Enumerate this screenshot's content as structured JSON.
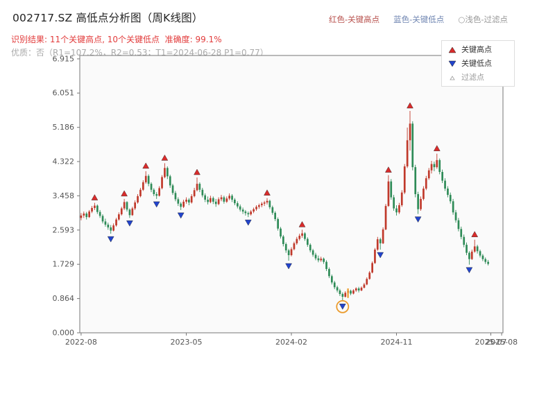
{
  "header": {
    "title": "002717.SZ 高低点分析图（周K线图）",
    "legend_high": "红色-关键高点",
    "legend_low": "蓝色-关键低点",
    "legend_filter": "○浅色-过滤点",
    "result_line": "识别结果: 11个关键高点, 10个关键低点  准确度: 99.1%",
    "quality_line": "优质：否（R1=107.2%，R2=0.53；T1=2024-06-28 P1=0.77）"
  },
  "legend_box": {
    "items": [
      {
        "label": "关键高点",
        "marker": "red-up-triangle"
      },
      {
        "label": "关键低点",
        "marker": "blue-down-triangle"
      },
      {
        "label": "过滤点",
        "marker": "hollow-triangle"
      }
    ]
  },
  "chart_data": {
    "type": "candlestick",
    "symbol": "002717.SZ",
    "period": "weekly",
    "title": "002717.SZ 高低点分析图（周K线图）",
    "ylim": [
      0,
      7.0
    ],
    "weeks_span": 157,
    "y_ticks": [
      "0.000",
      "0.864",
      "1.729",
      "2.593",
      "3.458",
      "4.322",
      "5.186",
      "6.051",
      "6.915"
    ],
    "x_ticks": [
      {
        "label": "2022-08",
        "week": 0
      },
      {
        "label": "2023-05",
        "week": 39
      },
      {
        "label": "2024-02",
        "week": 78
      },
      {
        "label": "2024-11",
        "week": 117
      },
      {
        "label": "2025-07",
        "week": 152
      },
      {
        "label": "2025-08",
        "week": 156
      }
    ],
    "key_high_weeks": [
      5,
      16,
      24,
      31,
      43,
      69,
      82,
      114,
      122,
      132,
      146
    ],
    "key_low_weeks": [
      11,
      18,
      28,
      37,
      62,
      77,
      97,
      111,
      125,
      144
    ],
    "filtered_circle_week": 97,
    "filtered_tick": {
      "week": 99,
      "v_top": 1.12,
      "v_bot": 0.88
    },
    "colors": {
      "up": "#c0392b",
      "down": "#2e8b57",
      "key_high": "#d92b2b",
      "key_low": "#2244cc",
      "filter": "#9a9a9a",
      "circle": "#eb9c2d",
      "frame": "#777777"
    },
    "ohlc": [
      [
        2.9,
        3.02,
        2.84,
        2.96
      ],
      [
        2.96,
        3.06,
        2.9,
        3.01
      ],
      [
        3.01,
        3.05,
        2.86,
        2.92
      ],
      [
        2.92,
        3.1,
        2.9,
        3.06
      ],
      [
        3.06,
        3.2,
        3.02,
        3.15
      ],
      [
        3.15,
        3.28,
        3.1,
        3.21
      ],
      [
        3.21,
        3.24,
        3.0,
        3.05
      ],
      [
        3.05,
        3.1,
        2.9,
        2.95
      ],
      [
        2.95,
        2.99,
        2.76,
        2.81
      ],
      [
        2.81,
        2.88,
        2.68,
        2.73
      ],
      [
        2.73,
        2.78,
        2.6,
        2.66
      ],
      [
        2.66,
        2.72,
        2.5,
        2.58
      ],
      [
        2.58,
        2.76,
        2.56,
        2.71
      ],
      [
        2.71,
        2.9,
        2.68,
        2.86
      ],
      [
        2.86,
        3.04,
        2.83,
        2.99
      ],
      [
        2.99,
        3.18,
        2.96,
        3.14
      ],
      [
        3.14,
        3.38,
        3.1,
        3.3
      ],
      [
        3.3,
        3.32,
        3.06,
        3.11
      ],
      [
        3.11,
        3.14,
        2.9,
        2.97
      ],
      [
        2.97,
        3.18,
        2.95,
        3.14
      ],
      [
        3.14,
        3.34,
        3.1,
        3.29
      ],
      [
        3.29,
        3.5,
        3.26,
        3.45
      ],
      [
        3.45,
        3.66,
        3.42,
        3.61
      ],
      [
        3.61,
        3.85,
        3.58,
        3.8
      ],
      [
        3.8,
        4.08,
        3.76,
        3.96
      ],
      [
        3.96,
        4.0,
        3.7,
        3.76
      ],
      [
        3.76,
        3.8,
        3.55,
        3.61
      ],
      [
        3.61,
        3.65,
        3.45,
        3.5
      ],
      [
        3.5,
        3.55,
        3.38,
        3.46
      ],
      [
        3.46,
        3.7,
        3.44,
        3.65
      ],
      [
        3.65,
        3.98,
        3.62,
        3.93
      ],
      [
        3.93,
        4.28,
        3.9,
        4.16
      ],
      [
        4.16,
        4.2,
        3.88,
        3.95
      ],
      [
        3.95,
        3.99,
        3.66,
        3.72
      ],
      [
        3.72,
        3.76,
        3.48,
        3.53
      ],
      [
        3.53,
        3.58,
        3.32,
        3.37
      ],
      [
        3.37,
        3.42,
        3.2,
        3.26
      ],
      [
        3.26,
        3.3,
        3.1,
        3.18
      ],
      [
        3.18,
        3.36,
        3.15,
        3.31
      ],
      [
        3.31,
        3.42,
        3.26,
        3.36
      ],
      [
        3.36,
        3.4,
        3.22,
        3.29
      ],
      [
        3.29,
        3.5,
        3.26,
        3.45
      ],
      [
        3.45,
        3.66,
        3.42,
        3.6
      ],
      [
        3.6,
        3.92,
        3.57,
        3.76
      ],
      [
        3.76,
        3.8,
        3.55,
        3.61
      ],
      [
        3.61,
        3.66,
        3.42,
        3.47
      ],
      [
        3.47,
        3.52,
        3.3,
        3.36
      ],
      [
        3.36,
        3.44,
        3.24,
        3.3
      ],
      [
        3.3,
        3.46,
        3.27,
        3.4
      ],
      [
        3.4,
        3.44,
        3.25,
        3.31
      ],
      [
        3.31,
        3.38,
        3.18,
        3.25
      ],
      [
        3.25,
        3.42,
        3.22,
        3.37
      ],
      [
        3.37,
        3.48,
        3.32,
        3.42
      ],
      [
        3.42,
        3.46,
        3.26,
        3.31
      ],
      [
        3.31,
        3.44,
        3.28,
        3.39
      ],
      [
        3.39,
        3.52,
        3.35,
        3.46
      ],
      [
        3.46,
        3.5,
        3.3,
        3.36
      ],
      [
        3.36,
        3.4,
        3.22,
        3.27
      ],
      [
        3.27,
        3.32,
        3.14,
        3.19
      ],
      [
        3.19,
        3.24,
        3.06,
        3.11
      ],
      [
        3.11,
        3.16,
        3.0,
        3.06
      ],
      [
        3.06,
        3.1,
        2.96,
        3.02
      ],
      [
        3.02,
        3.06,
        2.92,
        2.99
      ],
      [
        2.99,
        3.1,
        2.96,
        3.06
      ],
      [
        3.06,
        3.16,
        3.02,
        3.12
      ],
      [
        3.12,
        3.22,
        3.08,
        3.18
      ],
      [
        3.18,
        3.26,
        3.13,
        3.22
      ],
      [
        3.22,
        3.3,
        3.17,
        3.26
      ],
      [
        3.26,
        3.33,
        3.2,
        3.29
      ],
      [
        3.29,
        3.4,
        3.24,
        3.33
      ],
      [
        3.33,
        3.36,
        3.12,
        3.17
      ],
      [
        3.17,
        3.21,
        2.98,
        3.03
      ],
      [
        3.03,
        3.07,
        2.82,
        2.87
      ],
      [
        2.87,
        2.91,
        2.58,
        2.63
      ],
      [
        2.63,
        2.67,
        2.38,
        2.43
      ],
      [
        2.43,
        2.47,
        2.18,
        2.24
      ],
      [
        2.24,
        2.28,
        2.02,
        2.08
      ],
      [
        2.08,
        2.12,
        1.82,
        1.96
      ],
      [
        1.96,
        2.16,
        1.93,
        2.11
      ],
      [
        2.11,
        2.3,
        2.08,
        2.26
      ],
      [
        2.26,
        2.42,
        2.22,
        2.37
      ],
      [
        2.37,
        2.5,
        2.33,
        2.45
      ],
      [
        2.45,
        2.6,
        2.4,
        2.51
      ],
      [
        2.51,
        2.54,
        2.32,
        2.37
      ],
      [
        2.37,
        2.41,
        2.17,
        2.22
      ],
      [
        2.22,
        2.26,
        2.03,
        2.08
      ],
      [
        2.08,
        2.12,
        1.92,
        1.97
      ],
      [
        1.97,
        2.02,
        1.83,
        1.88
      ],
      [
        1.88,
        1.95,
        1.78,
        1.83
      ],
      [
        1.83,
        1.92,
        1.79,
        1.87
      ],
      [
        1.87,
        1.9,
        1.74,
        1.79
      ],
      [
        1.79,
        1.83,
        1.56,
        1.61
      ],
      [
        1.61,
        1.65,
        1.38,
        1.43
      ],
      [
        1.43,
        1.47,
        1.22,
        1.27
      ],
      [
        1.27,
        1.31,
        1.1,
        1.15
      ],
      [
        1.15,
        1.19,
        1.02,
        1.07
      ],
      [
        1.07,
        1.11,
        0.93,
        0.98
      ],
      [
        0.98,
        1.02,
        0.8,
        0.91
      ],
      [
        0.91,
        1.05,
        0.89,
        1.01
      ],
      [
        1.01,
        1.1,
        0.96,
        1.06
      ],
      [
        1.06,
        1.09,
        0.95,
        0.99
      ],
      [
        0.99,
        1.1,
        0.97,
        1.07
      ],
      [
        1.07,
        1.15,
        1.03,
        1.12
      ],
      [
        1.12,
        1.16,
        1.02,
        1.07
      ],
      [
        1.07,
        1.17,
        1.05,
        1.14
      ],
      [
        1.14,
        1.26,
        1.12,
        1.22
      ],
      [
        1.22,
        1.4,
        1.2,
        1.36
      ],
      [
        1.36,
        1.56,
        1.34,
        1.52
      ],
      [
        1.52,
        1.8,
        1.5,
        1.76
      ],
      [
        1.76,
        2.14,
        1.74,
        2.1
      ],
      [
        2.1,
        2.42,
        2.07,
        2.36
      ],
      [
        2.36,
        2.4,
        2.1,
        2.26
      ],
      [
        2.26,
        2.66,
        2.24,
        2.61
      ],
      [
        2.61,
        3.25,
        2.59,
        3.2
      ],
      [
        3.2,
        3.98,
        3.18,
        3.82
      ],
      [
        3.82,
        3.88,
        3.36,
        3.42
      ],
      [
        3.42,
        3.48,
        3.08,
        3.14
      ],
      [
        3.14,
        3.22,
        2.96,
        3.04
      ],
      [
        3.04,
        3.28,
        3.0,
        3.22
      ],
      [
        3.22,
        3.6,
        3.18,
        3.54
      ],
      [
        3.54,
        4.26,
        3.5,
        4.2
      ],
      [
        4.2,
        5.18,
        4.16,
        4.86
      ],
      [
        4.86,
        5.6,
        4.6,
        5.28
      ],
      [
        5.28,
        5.34,
        4.1,
        4.18
      ],
      [
        4.18,
        4.24,
        3.42,
        3.5
      ],
      [
        3.5,
        3.56,
        3.0,
        3.12
      ],
      [
        3.12,
        3.44,
        3.08,
        3.38
      ],
      [
        3.38,
        3.7,
        3.34,
        3.64
      ],
      [
        3.64,
        3.96,
        3.6,
        3.9
      ],
      [
        3.9,
        4.16,
        3.86,
        4.1
      ],
      [
        4.1,
        4.34,
        4.02,
        4.26
      ],
      [
        4.26,
        4.32,
        4.08,
        4.18
      ],
      [
        4.18,
        4.52,
        4.14,
        4.36
      ],
      [
        4.36,
        4.4,
        4.0,
        4.06
      ],
      [
        4.06,
        4.12,
        3.78,
        3.84
      ],
      [
        3.84,
        3.9,
        3.58,
        3.64
      ],
      [
        3.64,
        3.7,
        3.42,
        3.48
      ],
      [
        3.48,
        3.54,
        3.26,
        3.32
      ],
      [
        3.32,
        3.38,
        2.98,
        3.04
      ],
      [
        3.04,
        3.1,
        2.78,
        2.84
      ],
      [
        2.84,
        2.9,
        2.56,
        2.62
      ],
      [
        2.62,
        2.68,
        2.36,
        2.42
      ],
      [
        2.42,
        2.48,
        2.16,
        2.22
      ],
      [
        2.22,
        2.28,
        1.96,
        2.02
      ],
      [
        2.02,
        2.06,
        1.72,
        1.86
      ],
      [
        1.86,
        2.1,
        1.84,
        2.05
      ],
      [
        2.05,
        2.35,
        2.02,
        2.18
      ],
      [
        2.18,
        2.22,
        2.0,
        2.06
      ],
      [
        2.06,
        2.1,
        1.9,
        1.95
      ],
      [
        1.95,
        1.99,
        1.81,
        1.86
      ],
      [
        1.86,
        1.9,
        1.74,
        1.79
      ],
      [
        1.79,
        1.84,
        1.7,
        1.74
      ]
    ]
  }
}
